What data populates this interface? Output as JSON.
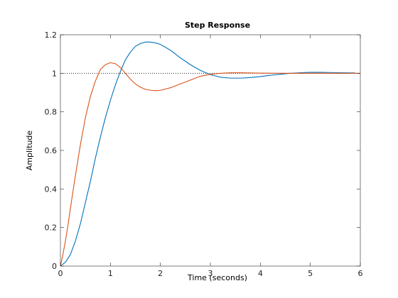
{
  "chart_data": {
    "type": "line",
    "title": "Step Response",
    "xlabel": "Time (seconds)",
    "ylabel": "Amplitude",
    "xlim": [
      0,
      6
    ],
    "ylim": [
      0,
      1.2
    ],
    "xticks": [
      0,
      1,
      2,
      3,
      4,
      5,
      6
    ],
    "yticks": [
      0,
      0.2,
      0.4,
      0.6,
      0.8,
      1,
      1.2
    ],
    "ytick_labels": [
      "0",
      "0.2",
      "0.4",
      "0.6",
      "0.8",
      "1",
      "1.2"
    ],
    "grid": false,
    "reference_line": {
      "y": 1,
      "style": "dotted"
    },
    "series": [
      {
        "color": "#0072BD",
        "x": [
          0,
          0.1,
          0.2,
          0.3,
          0.4,
          0.5,
          0.6,
          0.7,
          0.8,
          0.9,
          1.0,
          1.1,
          1.2,
          1.3,
          1.4,
          1.5,
          1.6,
          1.7,
          1.8,
          1.9,
          2.0,
          2.2,
          2.4,
          2.6,
          2.8,
          3.0,
          3.2,
          3.4,
          3.6,
          3.8,
          4.0,
          4.2,
          4.4,
          4.6,
          4.8,
          5.0,
          5.2,
          5.4,
          5.6,
          5.9
        ],
        "y": [
          0,
          0.02,
          0.06,
          0.13,
          0.22,
          0.33,
          0.44,
          0.56,
          0.67,
          0.77,
          0.86,
          0.94,
          1.01,
          1.07,
          1.11,
          1.14,
          1.155,
          1.162,
          1.162,
          1.158,
          1.15,
          1.12,
          1.08,
          1.045,
          1.015,
          0.993,
          0.98,
          0.975,
          0.975,
          0.978,
          0.983,
          0.99,
          0.995,
          1.0,
          1.003,
          1.005,
          1.005,
          1.004,
          1.003,
          1.002
        ]
      },
      {
        "color": "#D95319",
        "x": [
          0,
          0.05,
          0.1,
          0.15,
          0.2,
          0.3,
          0.4,
          0.5,
          0.6,
          0.7,
          0.8,
          0.9,
          1.0,
          1.1,
          1.2,
          1.3,
          1.4,
          1.5,
          1.6,
          1.7,
          1.8,
          1.9,
          2.0,
          2.2,
          2.4,
          2.6,
          2.8,
          3.0,
          3.2,
          3.4,
          3.6,
          3.8,
          4.0,
          4.5,
          5.0,
          5.5,
          6.0
        ],
        "y": [
          0,
          0.06,
          0.13,
          0.21,
          0.3,
          0.47,
          0.63,
          0.77,
          0.88,
          0.96,
          1.02,
          1.045,
          1.055,
          1.05,
          1.03,
          1.0,
          0.97,
          0.945,
          0.928,
          0.917,
          0.912,
          0.91,
          0.912,
          0.925,
          0.945,
          0.965,
          0.985,
          0.995,
          1.0,
          1.003,
          1.003,
          1.002,
          1.001,
          1.0,
          1.0,
          1.0,
          1.0
        ]
      }
    ]
  }
}
